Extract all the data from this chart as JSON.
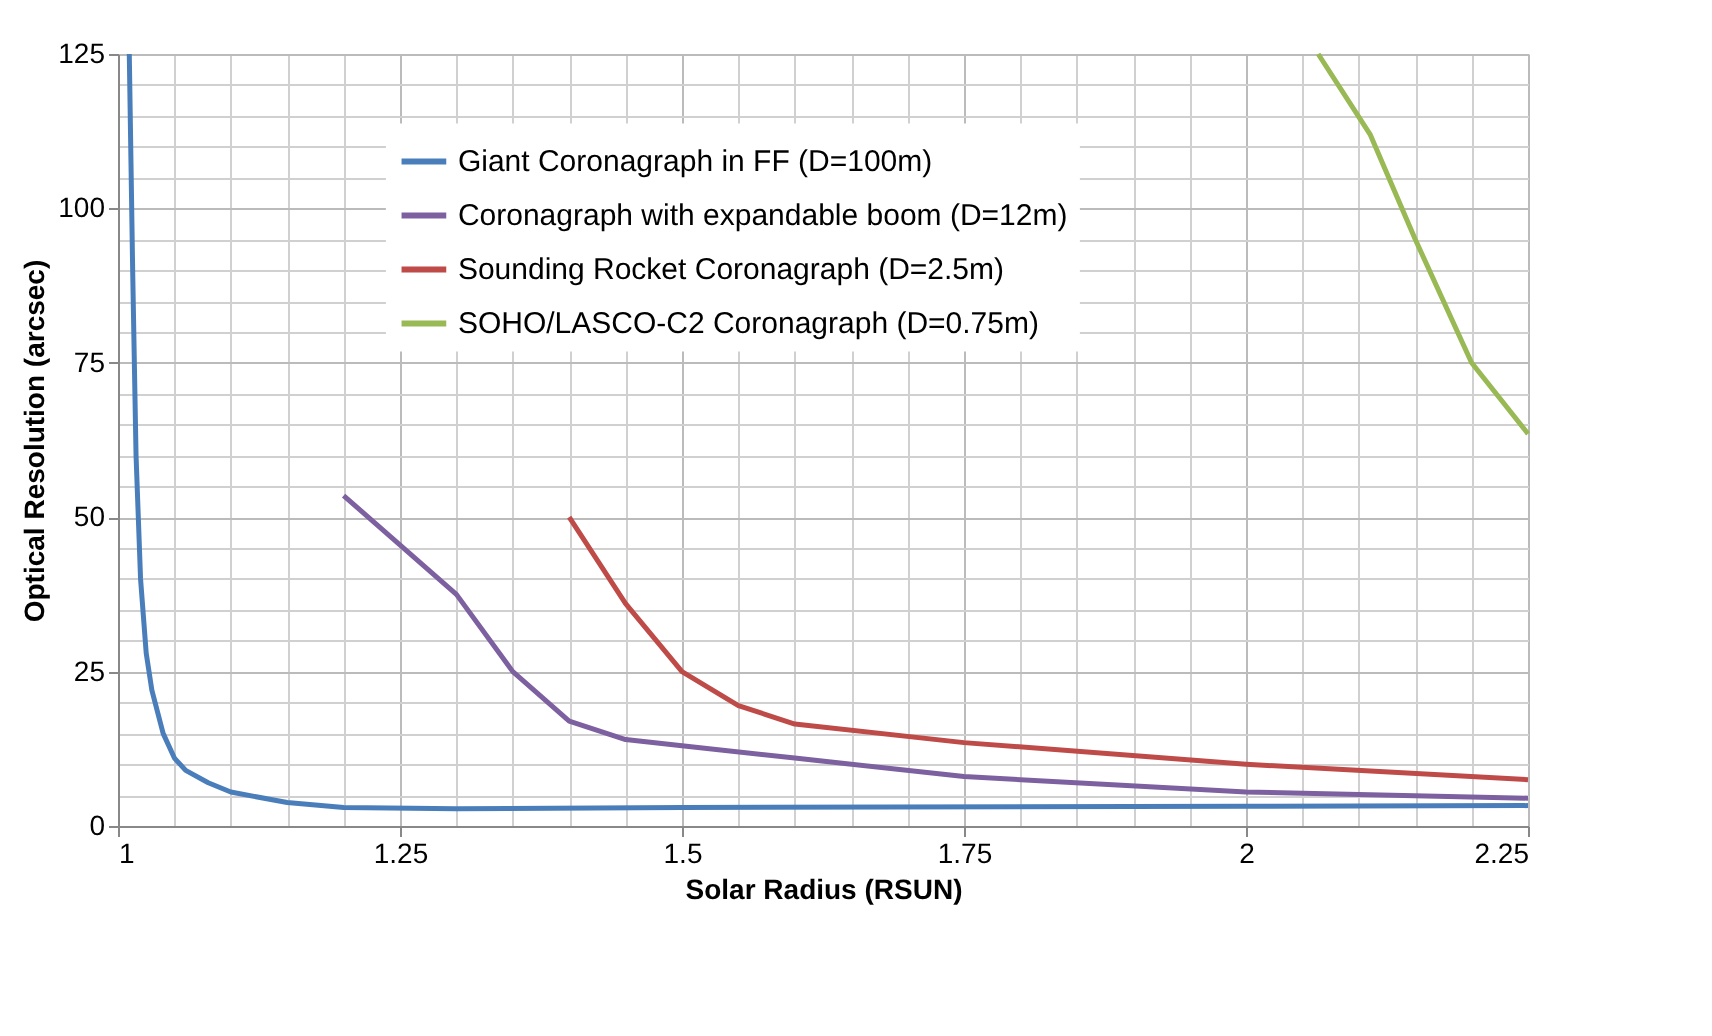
{
  "chart_data": {
    "type": "line",
    "xlabel": "Solar Radius (RSUN)",
    "ylabel": "Optical Resolution (arcsec)",
    "xlim": [
      1,
      2.25
    ],
    "xticks": [
      1,
      1.25,
      1.5,
      1.75,
      2,
      2.25
    ],
    "ylim": [
      0,
      125
    ],
    "yticks": [
      0,
      25,
      50,
      75,
      100,
      125
    ],
    "grid": true,
    "legend": "top",
    "marker": "none",
    "line_style": "solid",
    "series": [
      {
        "name": "Giant Coronagraph in FF (D=100m)",
        "color": "#4a7ebb",
        "x": [
          1.01,
          1.013,
          1.016,
          1.02,
          1.025,
          1.03,
          1.04,
          1.05,
          1.06,
          1.08,
          1.1,
          1.15,
          1.2,
          1.3,
          1.5,
          2.0,
          2.25
        ],
        "values": [
          125,
          90,
          60,
          40,
          28,
          22,
          15,
          11,
          9,
          7,
          5.5,
          3.8,
          3,
          2.8,
          3,
          3.2,
          3.3
        ]
      },
      {
        "name": "Coronagraph with expandable boom (D=12m)",
        "color": "#7d60a0",
        "x": [
          1.2,
          1.3,
          1.35,
          1.4,
          1.45,
          1.5,
          1.6,
          1.75,
          2.0,
          2.25
        ],
        "values": [
          53.5,
          37.5,
          25,
          17,
          14,
          13,
          11,
          8,
          5.5,
          4.5
        ]
      },
      {
        "name": "Sounding Rocket Coronagraph (D=2.5m)",
        "color": "#be4b48",
        "x": [
          1.4,
          1.45,
          1.5,
          1.55,
          1.6,
          1.75,
          2.0,
          2.25
        ],
        "values": [
          50,
          36,
          25,
          19.5,
          16.5,
          13.5,
          10,
          7.5
        ]
      },
      {
        "name": "SOHO/LASCO-C2 Coronagraph (D=0.75m)",
        "color": "#98b954",
        "x": [
          2.064,
          2.11,
          2.15,
          2.2,
          2.25
        ],
        "values": [
          125,
          112,
          95,
          75,
          63.5
        ]
      }
    ]
  }
}
